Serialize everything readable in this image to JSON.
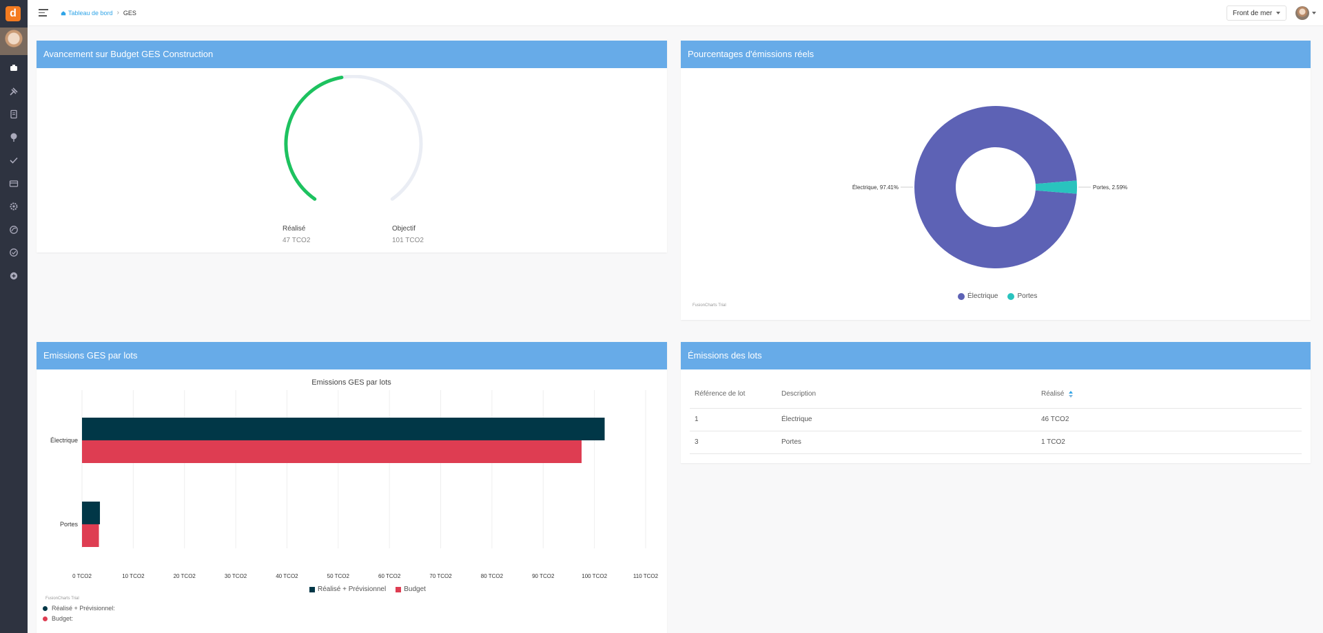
{
  "sidebar": {
    "logo_letter": "d",
    "icons": [
      "dashboard-icon",
      "tools-icon",
      "document-icon",
      "tree-icon",
      "check-icon",
      "card-icon",
      "gear-icon",
      "leaf-icon",
      "leaf-check-icon",
      "plus-circle-icon"
    ]
  },
  "topbar": {
    "breadcrumb_home": "Tableau de bord",
    "breadcrumb_current": "GES",
    "site_selector": "Front de mer"
  },
  "gauge_panel": {
    "title": "Avancement sur Budget GES Construction",
    "realise_label": "Réalisé",
    "realise_value": "47 TCO2",
    "objectif_label": "Objectif",
    "objectif_value": "101 TCO2",
    "realise_num": 47,
    "objectif_num": 101,
    "fill_color": "#1dc25f",
    "track_color": "#eaedf4"
  },
  "pie_panel": {
    "title": "Pourcentages d'émissions réels",
    "trial_text": "FusionCharts Trial"
  },
  "bar_panel": {
    "title": "Emissions GES par lots",
    "trial_text": "FusionCharts Trial",
    "legend2_series1": "Réalisé + Prévisionnel:",
    "legend2_series2": "Budget:"
  },
  "table_panel": {
    "title": "Émissions des lots",
    "columns": [
      "Référence de lot",
      "Description",
      "Réalisé"
    ],
    "rows": [
      [
        "1",
        "Électrique",
        "46 TCO2"
      ],
      [
        "3",
        "Portes",
        "1 TCO2"
      ]
    ]
  },
  "chart_data": [
    {
      "type": "pie",
      "labels": [
        "Électrique",
        "Portes"
      ],
      "values": [
        97.41,
        2.59
      ],
      "data_labels": [
        "Électrique, 97.41%",
        "Portes, 2.59%"
      ],
      "colors": [
        "#5d62b5",
        "#29c3be"
      ],
      "legend": "bottom"
    },
    {
      "type": "bar",
      "title": "Emissions GES par lots",
      "categories": [
        "Électrique",
        "Portes"
      ],
      "series": [
        {
          "name": "Réalisé + Prévisionnel",
          "values": [
            102,
            3.5
          ],
          "color": "#013747"
        },
        {
          "name": "Budget",
          "values": [
            97.5,
            3.3
          ],
          "color": "#de3d52"
        }
      ],
      "xlim": [
        0,
        110
      ],
      "ticks": [
        "0 TCO2",
        "10 TCO2",
        "20 TCO2",
        "30 TCO2",
        "40 TCO2",
        "50 TCO2",
        "60 TCO2",
        "70 TCO2",
        "80 TCO2",
        "90 TCO2",
        "100 TCO2",
        "110 TCO2"
      ],
      "legend": "bottom"
    }
  ]
}
